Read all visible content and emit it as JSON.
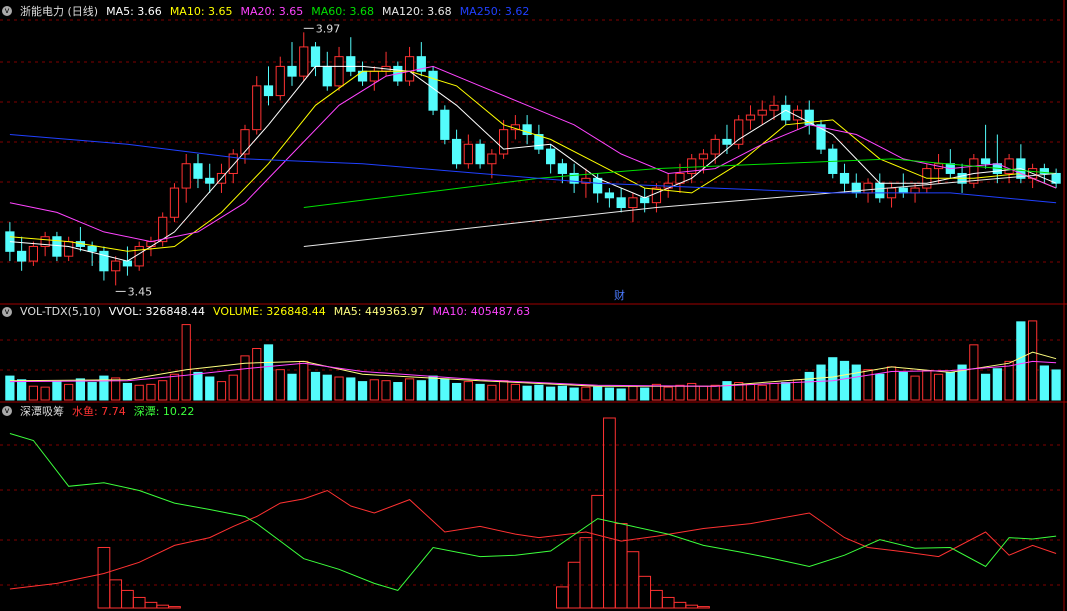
{
  "chart_data": [
    {
      "type": "candlestick",
      "title": "浙能电力 (日线)",
      "ylim": [
        3.42,
        4.02
      ],
      "open": [
        3.56,
        3.52,
        3.5,
        3.53,
        3.55,
        3.51,
        3.54,
        3.53,
        3.52,
        3.48,
        3.5,
        3.49,
        3.53,
        3.54,
        3.59,
        3.65,
        3.7,
        3.67,
        3.66,
        3.68,
        3.72,
        3.77,
        3.86,
        3.84,
        3.9,
        3.88,
        3.94,
        3.9,
        3.86,
        3.92,
        3.89,
        3.87,
        3.89,
        3.9,
        3.87,
        3.92,
        3.89,
        3.81,
        3.75,
        3.7,
        3.74,
        3.7,
        3.72,
        3.77,
        3.78,
        3.76,
        3.73,
        3.7,
        3.68,
        3.66,
        3.67,
        3.64,
        3.63,
        3.61,
        3.63,
        3.62,
        3.65,
        3.66,
        3.68,
        3.71,
        3.72,
        3.75,
        3.74,
        3.79,
        3.8,
        3.81,
        3.82,
        3.79,
        3.81,
        3.78,
        3.73,
        3.68,
        3.66,
        3.64,
        3.66,
        3.63,
        3.65,
        3.64,
        3.65,
        3.69,
        3.7,
        3.68,
        3.66,
        3.71,
        3.7,
        3.68,
        3.71,
        3.67,
        3.69,
        3.68
      ],
      "high": [
        3.58,
        3.55,
        3.54,
        3.56,
        3.56,
        3.55,
        3.57,
        3.54,
        3.53,
        3.51,
        3.53,
        3.54,
        3.55,
        3.6,
        3.66,
        3.72,
        3.72,
        3.7,
        3.7,
        3.73,
        3.78,
        3.88,
        3.9,
        3.92,
        3.95,
        3.97,
        3.95,
        3.93,
        3.94,
        3.96,
        3.91,
        3.9,
        3.93,
        3.91,
        3.94,
        3.95,
        3.9,
        3.82,
        3.77,
        3.76,
        3.75,
        3.73,
        3.79,
        3.8,
        3.8,
        3.78,
        3.74,
        3.71,
        3.7,
        3.69,
        3.68,
        3.65,
        3.65,
        3.64,
        3.65,
        3.66,
        3.68,
        3.7,
        3.72,
        3.73,
        3.76,
        3.78,
        3.8,
        3.82,
        3.83,
        3.84,
        3.84,
        3.82,
        3.83,
        3.79,
        3.74,
        3.7,
        3.68,
        3.67,
        3.68,
        3.66,
        3.68,
        3.66,
        3.7,
        3.72,
        3.73,
        3.7,
        3.72,
        3.78,
        3.76,
        3.72,
        3.74,
        3.7,
        3.7,
        3.69
      ],
      "low": [
        3.5,
        3.48,
        3.49,
        3.51,
        3.5,
        3.5,
        3.52,
        3.49,
        3.46,
        3.45,
        3.47,
        3.48,
        3.51,
        3.53,
        3.58,
        3.62,
        3.65,
        3.64,
        3.64,
        3.66,
        3.7,
        3.76,
        3.82,
        3.83,
        3.86,
        3.87,
        3.88,
        3.85,
        3.85,
        3.88,
        3.86,
        3.85,
        3.88,
        3.86,
        3.86,
        3.88,
        3.8,
        3.74,
        3.69,
        3.69,
        3.69,
        3.67,
        3.71,
        3.75,
        3.74,
        3.72,
        3.68,
        3.66,
        3.64,
        3.63,
        3.62,
        3.61,
        3.6,
        3.58,
        3.6,
        3.6,
        3.63,
        3.64,
        3.66,
        3.68,
        3.7,
        3.72,
        3.73,
        3.77,
        3.78,
        3.79,
        3.78,
        3.77,
        3.76,
        3.72,
        3.67,
        3.64,
        3.63,
        3.62,
        3.62,
        3.61,
        3.63,
        3.62,
        3.64,
        3.66,
        3.67,
        3.64,
        3.65,
        3.69,
        3.66,
        3.66,
        3.66,
        3.65,
        3.66,
        3.65
      ],
      "close": [
        3.52,
        3.5,
        3.53,
        3.55,
        3.51,
        3.54,
        3.53,
        3.52,
        3.48,
        3.5,
        3.49,
        3.53,
        3.54,
        3.59,
        3.65,
        3.7,
        3.67,
        3.66,
        3.68,
        3.72,
        3.77,
        3.86,
        3.84,
        3.9,
        3.88,
        3.94,
        3.9,
        3.86,
        3.92,
        3.89,
        3.87,
        3.89,
        3.9,
        3.87,
        3.92,
        3.89,
        3.81,
        3.75,
        3.7,
        3.74,
        3.7,
        3.72,
        3.77,
        3.78,
        3.76,
        3.73,
        3.7,
        3.68,
        3.66,
        3.67,
        3.64,
        3.63,
        3.61,
        3.63,
        3.62,
        3.65,
        3.66,
        3.68,
        3.71,
        3.72,
        3.75,
        3.74,
        3.79,
        3.8,
        3.81,
        3.82,
        3.79,
        3.81,
        3.78,
        3.73,
        3.68,
        3.66,
        3.64,
        3.66,
        3.63,
        3.65,
        3.64,
        3.65,
        3.69,
        3.7,
        3.68,
        3.66,
        3.71,
        3.7,
        3.68,
        3.71,
        3.67,
        3.69,
        3.68,
        3.66
      ],
      "up_color": "#ff3232",
      "down_color": "#54fcfc",
      "annotations": [
        "3.97",
        "3.45"
      ],
      "marker": "财",
      "series": [
        {
          "name": "MA5: 3.66",
          "color": "#ffffff",
          "x": [
            0,
            5,
            10,
            14,
            18,
            22,
            26,
            30,
            34,
            38,
            42,
            46,
            50,
            54,
            58,
            62,
            66,
            70,
            74,
            78,
            82,
            86,
            89
          ],
          "values": [
            3.54,
            3.53,
            3.5,
            3.56,
            3.67,
            3.78,
            3.9,
            3.9,
            3.89,
            3.82,
            3.73,
            3.74,
            3.67,
            3.63,
            3.67,
            3.75,
            3.81,
            3.76,
            3.66,
            3.66,
            3.68,
            3.69,
            3.66
          ]
        },
        {
          "name": "MA10: 3.65",
          "color": "#ffff00",
          "x": [
            0,
            5,
            10,
            14,
            18,
            22,
            26,
            30,
            34,
            38,
            42,
            46,
            50,
            54,
            58,
            62,
            66,
            70,
            74,
            78,
            82,
            86,
            89
          ],
          "values": [
            3.55,
            3.54,
            3.52,
            3.53,
            3.6,
            3.7,
            3.82,
            3.89,
            3.89,
            3.86,
            3.78,
            3.75,
            3.7,
            3.65,
            3.64,
            3.7,
            3.78,
            3.79,
            3.71,
            3.67,
            3.67,
            3.68,
            3.65
          ]
        },
        {
          "name": "MA20: 3.65",
          "color": "#ff44ff",
          "x": [
            0,
            4,
            8,
            12,
            16,
            20,
            24,
            28,
            32,
            36,
            40,
            44,
            48,
            52,
            56,
            60,
            64,
            68,
            72,
            76,
            80,
            84,
            89
          ],
          "values": [
            3.62,
            3.6,
            3.56,
            3.54,
            3.56,
            3.62,
            3.72,
            3.82,
            3.88,
            3.9,
            3.86,
            3.82,
            3.78,
            3.72,
            3.68,
            3.69,
            3.74,
            3.78,
            3.76,
            3.71,
            3.69,
            3.7,
            3.65
          ]
        },
        {
          "name": "MA60: 3.68",
          "color": "#00e000",
          "x": [
            25,
            35,
            45,
            55,
            65,
            75,
            89
          ],
          "values": [
            3.61,
            3.64,
            3.67,
            3.69,
            3.7,
            3.71,
            3.68
          ]
        },
        {
          "name": "MA120: 3.68",
          "color": "#e8e8e8",
          "x": [
            25,
            40,
            55,
            70,
            89
          ],
          "values": [
            3.53,
            3.57,
            3.61,
            3.64,
            3.68
          ]
        },
        {
          "name": "MA250: 3.62",
          "color": "#2040ff",
          "x": [
            0,
            10,
            20,
            30,
            40,
            50,
            60,
            70,
            80,
            89
          ],
          "values": [
            3.76,
            3.74,
            3.71,
            3.7,
            3.68,
            3.66,
            3.65,
            3.64,
            3.64,
            3.62
          ]
        }
      ]
    },
    {
      "type": "volume",
      "title": "VOL-TDX(5,10)",
      "ylim": [
        0,
        870000
      ],
      "values": [
        260000,
        220000,
        150000,
        140000,
        200000,
        170000,
        230000,
        190000,
        260000,
        240000,
        180000,
        160000,
        170000,
        210000,
        280000,
        820000,
        300000,
        250000,
        200000,
        270000,
        480000,
        560000,
        600000,
        330000,
        280000,
        420000,
        300000,
        270000,
        250000,
        240000,
        200000,
        220000,
        210000,
        190000,
        230000,
        210000,
        260000,
        230000,
        180000,
        200000,
        170000,
        160000,
        210000,
        170000,
        150000,
        160000,
        140000,
        150000,
        130000,
        140000,
        140000,
        130000,
        120000,
        150000,
        130000,
        170000,
        140000,
        160000,
        180000,
        150000,
        160000,
        200000,
        190000,
        170000,
        160000,
        180000,
        190000,
        220000,
        300000,
        380000,
        460000,
        420000,
        380000,
        330000,
        280000,
        360000,
        300000,
        260000,
        320000,
        280000,
        300000,
        380000,
        600000,
        280000,
        340000,
        420000,
        850000,
        860000,
        370000,
        326848
      ],
      "legend": [
        {
          "name": "VVOL: 326848.44",
          "color": "#ffffff"
        },
        {
          "name": "VOLUME: 326848.44",
          "color": "#ffff00"
        }
      ],
      "series": [
        {
          "name": "MA5: 449363.97",
          "color": "#ffff80",
          "x": [
            0,
            10,
            15,
            20,
            25,
            30,
            40,
            50,
            60,
            70,
            75,
            80,
            85,
            87,
            89
          ],
          "values": [
            210000,
            220000,
            330000,
            400000,
            420000,
            280000,
            210000,
            150000,
            150000,
            250000,
            360000,
            300000,
            400000,
            520000,
            449363.97
          ]
        },
        {
          "name": "MA10: 405487.63",
          "color": "#ff44ff",
          "x": [
            0,
            10,
            15,
            20,
            25,
            30,
            40,
            50,
            60,
            70,
            75,
            80,
            85,
            87,
            89
          ],
          "values": [
            200000,
            210000,
            270000,
            340000,
            400000,
            310000,
            220000,
            160000,
            150000,
            210000,
            310000,
            320000,
            370000,
            420000,
            405487.63
          ]
        }
      ]
    },
    {
      "type": "indicator",
      "title": "深潭吸筹",
      "ylim": [
        0,
        27
      ],
      "series": [
        {
          "name": "水鱼: 7.74",
          "color": "#ff3232",
          "x": [
            0,
            4,
            8,
            11,
            14,
            17,
            19,
            21,
            23,
            25,
            27,
            29,
            31,
            34,
            37,
            40,
            43,
            45,
            49,
            52,
            55,
            59,
            63,
            68,
            71,
            73,
            76,
            79,
            83,
            85,
            87,
            89
          ],
          "values": [
            2.7,
            3.5,
            4.9,
            6.5,
            8.9,
            10.0,
            11.6,
            13.0,
            14.9,
            15.5,
            16.7,
            14.5,
            13.5,
            15.4,
            10.8,
            11.6,
            10.5,
            10.0,
            10.8,
            9.5,
            10.2,
            11.3,
            12.0,
            13.5,
            10.0,
            8.6,
            8.0,
            7.3,
            10.8,
            7.5,
            8.9,
            7.74
          ]
        },
        {
          "name": "深潭: 10.22",
          "color": "#3cff3c",
          "x": [
            0,
            2,
            5,
            8,
            11,
            14,
            17,
            20,
            21,
            23,
            25,
            28,
            31,
            33,
            36,
            40,
            43,
            46,
            50,
            53,
            56,
            59,
            62,
            65,
            68,
            71,
            74,
            77,
            80,
            83,
            85,
            87,
            89
          ],
          "values": [
            24.8,
            23.8,
            17.3,
            17.8,
            16.7,
            14.9,
            14.0,
            13.0,
            12.0,
            9.5,
            7.0,
            5.5,
            3.5,
            2.5,
            8.6,
            7.3,
            7.5,
            8.1,
            12.7,
            11.6,
            10.5,
            8.9,
            8.0,
            7.0,
            5.9,
            7.5,
            9.7,
            8.5,
            8.6,
            5.9,
            10.0,
            9.8,
            10.22
          ]
        }
      ],
      "bars": {
        "color": "#ff3232",
        "x": [
          8,
          9,
          10,
          11,
          12,
          13,
          14,
          47,
          48,
          49,
          50,
          51,
          52,
          53,
          54,
          55,
          56,
          57,
          58,
          59
        ],
        "values": [
          8.6,
          4.0,
          2.5,
          1.5,
          0.8,
          0.4,
          0.2,
          3.0,
          6.5,
          10.0,
          16.0,
          27,
          12,
          8,
          4.5,
          2.5,
          1.5,
          0.8,
          0.4,
          0.2
        ]
      }
    }
  ]
}
